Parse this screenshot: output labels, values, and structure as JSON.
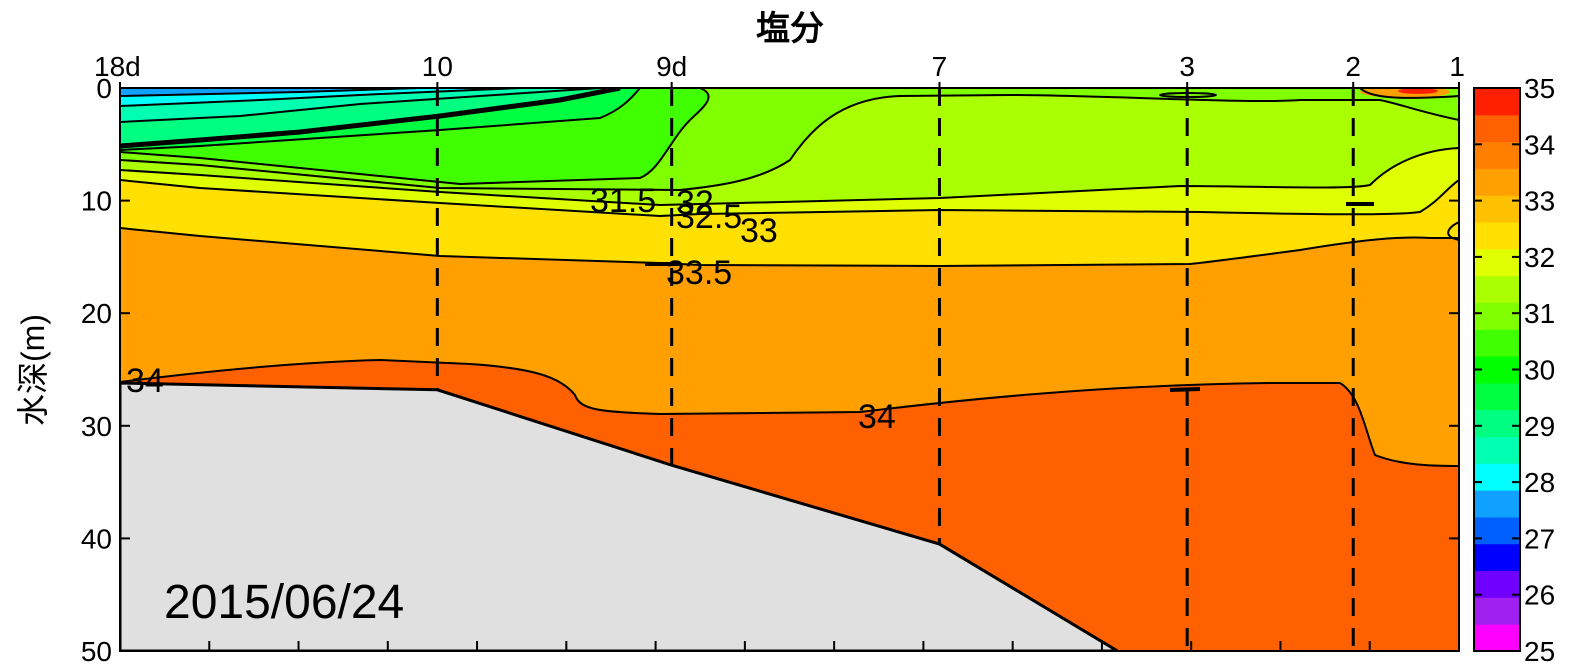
{
  "chart_data": {
    "type": "contour",
    "title": "塩分",
    "ylabel": "水深(m)",
    "date_label": "2015/06/24",
    "ylim": [
      0,
      50
    ],
    "y_ticks": [
      0,
      10,
      20,
      30,
      40,
      50
    ],
    "x_range": [
      0,
      100
    ],
    "stations": [
      {
        "label": "18d",
        "x": 0,
        "bottom_depth": 26.2
      },
      {
        "label": "10",
        "x": 23.7,
        "bottom_depth": 26.8
      },
      {
        "label": "9d",
        "x": 41.2,
        "bottom_depth": 33.5
      },
      {
        "label": "7",
        "x": 61.2,
        "bottom_depth": 40.5
      },
      {
        "label": "3",
        "x": 79.7,
        "bottom_depth": 50
      },
      {
        "label": "2",
        "x": 92.1,
        "bottom_depth": 50
      },
      {
        "label": "1",
        "x": 100,
        "bottom_depth": 50
      }
    ],
    "levels": [
      25,
      26,
      27,
      28,
      29,
      30,
      31,
      32,
      33,
      34,
      35
    ],
    "colorbar_colors": [
      "#ff00ff",
      "#a020f0",
      "#7000ff",
      "#0000ff",
      "#0060ff",
      "#10a0ff",
      "#00ffff",
      "#00ffb0",
      "#00ff80",
      "#00ff40",
      "#00ff00",
      "#40ff00",
      "#80ff00",
      "#aaff00",
      "#e0ff00",
      "#ffe000",
      "#ffc000",
      "#ffa000",
      "#ff8000",
      "#ff6000",
      "#ff2000"
    ],
    "contour_labels": [
      "31.5",
      "32",
      "32.5",
      "33",
      "33.5",
      "34",
      "34"
    ]
  }
}
